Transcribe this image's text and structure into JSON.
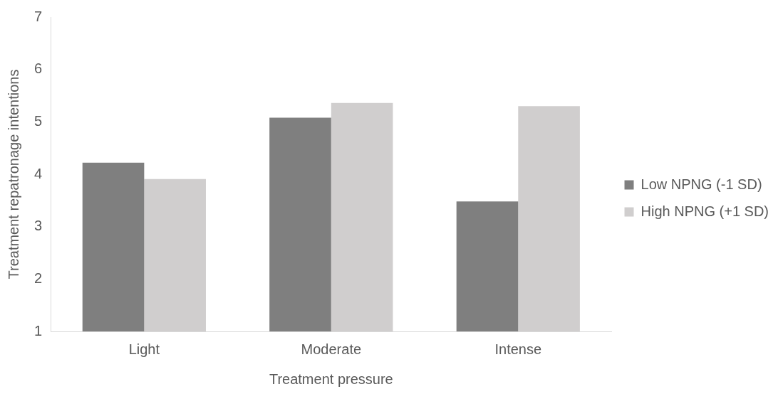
{
  "chart_data": {
    "type": "bar",
    "xlabel": "Treatment pressure",
    "ylabel": "Treatment repatronage intentions",
    "categories": [
      "Light",
      "Moderate",
      "Intense"
    ],
    "series": [
      {
        "name": "Low NPNG (-1 SD)",
        "color": "#7f7f7f",
        "values": [
          4.22,
          5.08,
          3.48
        ]
      },
      {
        "name": "High NPNG (+1 SD)",
        "color": "#d0cece",
        "values": [
          3.91,
          5.36,
          5.3
        ]
      }
    ],
    "ylim": [
      1,
      7
    ],
    "yticks": [
      1,
      2,
      3,
      4,
      5,
      6,
      7
    ],
    "grid": false,
    "legend": "right"
  }
}
